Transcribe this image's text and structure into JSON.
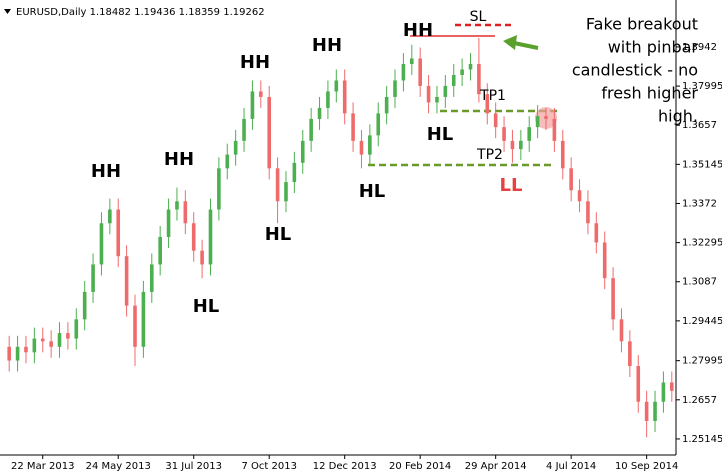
{
  "chart_data": {
    "type": "candlestick",
    "header": "EURUSD,Daily  1.18482 1.19436 1.18359 1.19262",
    "categories": [
      null,
      null,
      null,
      null,
      "22 Mar 2013",
      null,
      null,
      null,
      null,
      null,
      null,
      null,
      null,
      "24 May 2013",
      null,
      null,
      null,
      null,
      null,
      null,
      null,
      null,
      "31 Jul 2013",
      null,
      null,
      null,
      null,
      null,
      null,
      null,
      null,
      "7 Oct 2013",
      null,
      null,
      null,
      null,
      null,
      null,
      null,
      null,
      "12 Dec 2013",
      null,
      null,
      null,
      null,
      null,
      null,
      null,
      null,
      "20 Feb 2014",
      null,
      null,
      null,
      null,
      null,
      null,
      null,
      null,
      "29 Apr 2014",
      null,
      null,
      null,
      null,
      null,
      null,
      null,
      null,
      "4 Jul 2014",
      null,
      null,
      null,
      null,
      null,
      null,
      null,
      null,
      "10 Sep 2014",
      null,
      null,
      null
    ],
    "open": [
      1.285,
      1.28,
      1.285,
      1.283,
      1.288,
      1.287,
      1.285,
      1.29,
      1.288,
      1.295,
      1.305,
      1.315,
      1.33,
      1.335,
      1.318,
      1.3,
      1.285,
      1.305,
      1.315,
      1.325,
      1.335,
      1.338,
      1.33,
      1.32,
      1.315,
      1.335,
      1.35,
      1.355,
      1.36,
      1.368,
      1.378,
      1.376,
      1.35,
      1.338,
      1.345,
      1.352,
      1.36,
      1.368,
      1.372,
      1.378,
      1.382,
      1.37,
      1.36,
      1.355,
      1.362,
      1.37,
      1.376,
      1.382,
      1.388,
      1.39,
      1.38,
      1.374,
      1.376,
      1.38,
      1.384,
      1.386,
      1.388,
      1.377,
      1.37,
      1.365,
      1.36,
      1.357,
      1.36,
      1.365,
      1.369,
      1.368,
      1.36,
      1.35,
      1.342,
      1.338,
      1.33,
      1.323,
      1.31,
      1.295,
      1.287,
      1.278,
      1.265,
      1.258,
      1.265,
      1.272
    ],
    "high": [
      1.289,
      1.289,
      1.289,
      1.292,
      1.292,
      1.291,
      1.294,
      1.294,
      1.299,
      1.309,
      1.319,
      1.334,
      1.339,
      1.339,
      1.322,
      1.304,
      1.309,
      1.319,
      1.329,
      1.339,
      1.343,
      1.342,
      1.334,
      1.324,
      1.339,
      1.354,
      1.359,
      1.364,
      1.372,
      1.382,
      1.382,
      1.38,
      1.354,
      1.349,
      1.356,
      1.364,
      1.372,
      1.376,
      1.382,
      1.386,
      1.386,
      1.374,
      1.364,
      1.366,
      1.374,
      1.38,
      1.386,
      1.392,
      1.395,
      1.394,
      1.384,
      1.38,
      1.384,
      1.388,
      1.39,
      1.392,
      1.3975,
      1.381,
      1.374,
      1.369,
      1.364,
      1.364,
      1.369,
      1.373,
      1.372,
      1.372,
      1.364,
      1.354,
      1.346,
      1.342,
      1.334,
      1.327,
      1.314,
      1.299,
      1.291,
      1.282,
      1.269,
      1.269,
      1.276,
      1.276
    ],
    "low": [
      1.276,
      1.276,
      1.279,
      1.279,
      1.283,
      1.281,
      1.281,
      1.284,
      1.284,
      1.291,
      1.301,
      1.311,
      1.326,
      1.314,
      1.296,
      1.278,
      1.281,
      1.301,
      1.311,
      1.321,
      1.331,
      1.326,
      1.316,
      1.31,
      1.311,
      1.331,
      1.346,
      1.351,
      1.356,
      1.364,
      1.372,
      1.346,
      1.33,
      1.334,
      1.341,
      1.348,
      1.356,
      1.364,
      1.368,
      1.374,
      1.366,
      1.356,
      1.35,
      1.351,
      1.358,
      1.366,
      1.372,
      1.378,
      1.384,
      1.376,
      1.37,
      1.37,
      1.372,
      1.376,
      1.38,
      1.382,
      1.374,
      1.366,
      1.361,
      1.356,
      1.352,
      1.353,
      1.356,
      1.361,
      1.364,
      1.356,
      1.346,
      1.338,
      1.334,
      1.326,
      1.319,
      1.306,
      1.291,
      1.283,
      1.274,
      1.261,
      1.252,
      1.254,
      1.261,
      1.265
    ],
    "close": [
      1.28,
      1.285,
      1.283,
      1.288,
      1.287,
      1.285,
      1.29,
      1.288,
      1.295,
      1.305,
      1.315,
      1.33,
      1.335,
      1.318,
      1.3,
      1.285,
      1.305,
      1.315,
      1.325,
      1.335,
      1.338,
      1.33,
      1.32,
      1.315,
      1.335,
      1.35,
      1.355,
      1.36,
      1.368,
      1.378,
      1.376,
      1.35,
      1.338,
      1.345,
      1.352,
      1.36,
      1.368,
      1.372,
      1.378,
      1.382,
      1.37,
      1.36,
      1.355,
      1.362,
      1.37,
      1.376,
      1.382,
      1.388,
      1.39,
      1.38,
      1.374,
      1.376,
      1.38,
      1.384,
      1.386,
      1.388,
      1.377,
      1.37,
      1.365,
      1.36,
      1.357,
      1.36,
      1.365,
      1.369,
      1.368,
      1.36,
      1.35,
      1.342,
      1.338,
      1.33,
      1.323,
      1.31,
      1.295,
      1.287,
      1.278,
      1.265,
      1.258,
      1.265,
      1.272,
      1.269
    ],
    "up_color": "#4caf50",
    "down_color": "#ef6b6b",
    "ylim": [
      1.2456,
      1.4113
    ],
    "yticks": [
      1.3942,
      1.37995,
      1.3657,
      1.35145,
      1.3372,
      1.32295,
      1.3087,
      1.29445,
      1.27995,
      1.2657,
      1.25145
    ],
    "annotations": [
      "HH",
      "HH",
      "HH",
      "HH",
      "HH",
      "HL",
      "HL",
      "HL",
      "HL",
      "LL",
      "SL",
      "TP1",
      "TP2"
    ],
    "note": [
      "Fake breakout",
      "with pinbar",
      "candlestick - no",
      "fresh higher",
      "high."
    ]
  }
}
